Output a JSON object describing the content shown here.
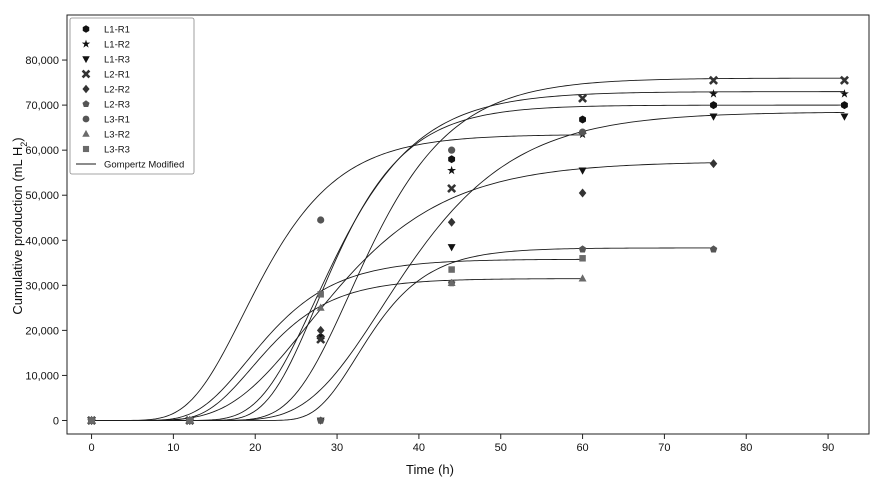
{
  "chart_data": {
    "type": "scatter",
    "xlabel": "Time (h)",
    "ylabel_main": "Cumulative production (mL H",
    "ylabel_sub": "2",
    "ylabel_tail": ")",
    "xlim": [
      -3,
      95
    ],
    "ylim": [
      -3000,
      90000
    ],
    "x_ticks": [
      0,
      10,
      20,
      30,
      40,
      50,
      60,
      70,
      80,
      90
    ],
    "x_tick_labels": [
      "0",
      "10",
      "20",
      "30",
      "40",
      "50",
      "60",
      "70",
      "80",
      "90"
    ],
    "y_ticks": [
      0,
      10000,
      20000,
      30000,
      40000,
      50000,
      60000,
      70000,
      80000
    ],
    "y_tick_labels": [
      "0",
      "10,000",
      "20,000",
      "30,000",
      "40,000",
      "50,000",
      "60,000",
      "70,000",
      "80,000"
    ],
    "grid": false,
    "legend_position": "top-left",
    "fit_label": "Gompertz Modified",
    "series": [
      {
        "name": "L1-R1",
        "marker": "hexagon",
        "color": "#111111",
        "x": [
          0,
          12,
          28,
          44,
          60,
          76,
          92
        ],
        "y": [
          0,
          0,
          18500,
          58000,
          66800,
          70000,
          70000
        ],
        "fit": {
          "P": 70000,
          "Rm": 4300,
          "lambda": 21.5
        }
      },
      {
        "name": "L1-R2",
        "marker": "star",
        "color": "#111111",
        "x": [
          0,
          12,
          28,
          44,
          60,
          76,
          92
        ],
        "y": [
          0,
          0,
          18000,
          55500,
          63500,
          72500,
          72500
        ],
        "fit": {
          "P": 73000,
          "Rm": 3900,
          "lambda": 20.5
        }
      },
      {
        "name": "L1-R3",
        "marker": "triangle-down",
        "color": "#111111",
        "x": [
          0,
          12,
          28,
          44,
          60,
          76,
          92
        ],
        "y": [
          0,
          0,
          0,
          38500,
          55500,
          67500,
          67500
        ],
        "fit": {
          "P": 68500,
          "Rm": 2800,
          "lambda": 26.5
        }
      },
      {
        "name": "L2-R1",
        "marker": "x",
        "color": "#333333",
        "x": [
          0,
          12,
          28,
          44,
          60,
          76,
          92
        ],
        "y": [
          0,
          0,
          18000,
          51500,
          71500,
          75500,
          75500
        ],
        "fit": {
          "P": 76000,
          "Rm": 4000,
          "lambda": 24.5
        }
      },
      {
        "name": "L2-R2",
        "marker": "diamond",
        "color": "#333333",
        "x": [
          0,
          12,
          28,
          44,
          60,
          76
        ],
        "y": [
          0,
          0,
          20000,
          44000,
          50500,
          57000
        ],
        "fit": {
          "P": 57500,
          "Rm": 2250,
          "lambda": 17.0
        }
      },
      {
        "name": "L2-R3",
        "marker": "pentagon",
        "color": "#555555",
        "x": [
          0,
          12,
          28,
          44,
          60,
          76
        ],
        "y": [
          0,
          0,
          0,
          30500,
          38000,
          38000
        ],
        "fit": {
          "P": 38300,
          "Rm": 2900,
          "lambda": 27.5
        }
      },
      {
        "name": "L3-R1",
        "marker": "circle",
        "color": "#555555",
        "x": [
          0,
          12,
          28,
          44,
          60
        ],
        "y": [
          0,
          0,
          44500,
          60000,
          64000
        ],
        "fit": {
          "P": 63500,
          "Rm": 3600,
          "lambda": 12.0
        }
      },
      {
        "name": "L3-R2",
        "marker": "triangle-up",
        "color": "#6a6a6a",
        "x": [
          0,
          12,
          28,
          44,
          60
        ],
        "y": [
          0,
          0,
          25000,
          30500,
          31500
        ],
        "fit": {
          "P": 31500,
          "Rm": 2100,
          "lambda": 14.0
        }
      },
      {
        "name": "L3-R3",
        "marker": "square",
        "color": "#6a6a6a",
        "x": [
          0,
          12,
          28,
          44,
          60
        ],
        "y": [
          0,
          0,
          28000,
          33500,
          36000
        ],
        "fit": {
          "P": 35800,
          "Rm": 2200,
          "lambda": 13.0
        }
      }
    ]
  }
}
